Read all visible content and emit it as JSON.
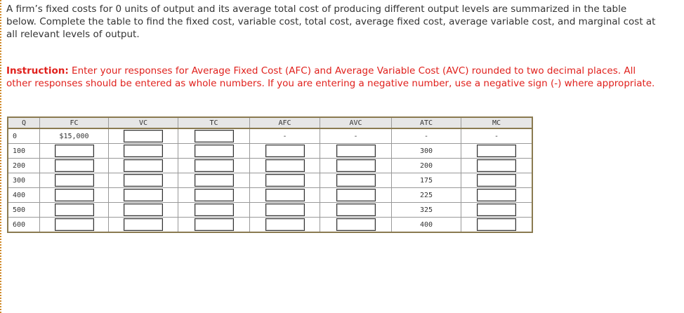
{
  "intro": "A firm’s fixed costs for 0 units of output and its average total cost of producing different output levels are summarized in the table below. Complete the table to find the fixed cost, variable cost, total cost, average fixed cost, average variable cost, and marginal cost at all relevant levels of output.",
  "instruction": {
    "label": "Instruction:",
    "text": " Enter your responses for Average Fixed Cost (AFC) and Average Variable Cost (AVC) rounded to two decimal places. All other responses should be entered as whole numbers. If you are entering a negative number, use a negative sign (-) where appropriate."
  },
  "table": {
    "headers": [
      "Q",
      "FC",
      "VC",
      "TC",
      "AFC",
      "AVC",
      "ATC",
      "MC"
    ],
    "rows": [
      [
        0,
        "$15,000",
        null,
        null,
        "-",
        "-",
        "-",
        "-"
      ],
      [
        100,
        null,
        null,
        null,
        null,
        null,
        300,
        null
      ],
      [
        200,
        null,
        null,
        null,
        null,
        null,
        200,
        null
      ],
      [
        300,
        null,
        null,
        null,
        null,
        null,
        175,
        null
      ],
      [
        400,
        null,
        null,
        null,
        null,
        null,
        225,
        null
      ],
      [
        500,
        null,
        null,
        null,
        null,
        null,
        325,
        null
      ],
      [
        600,
        null,
        null,
        null,
        null,
        null,
        400,
        null
      ]
    ]
  }
}
